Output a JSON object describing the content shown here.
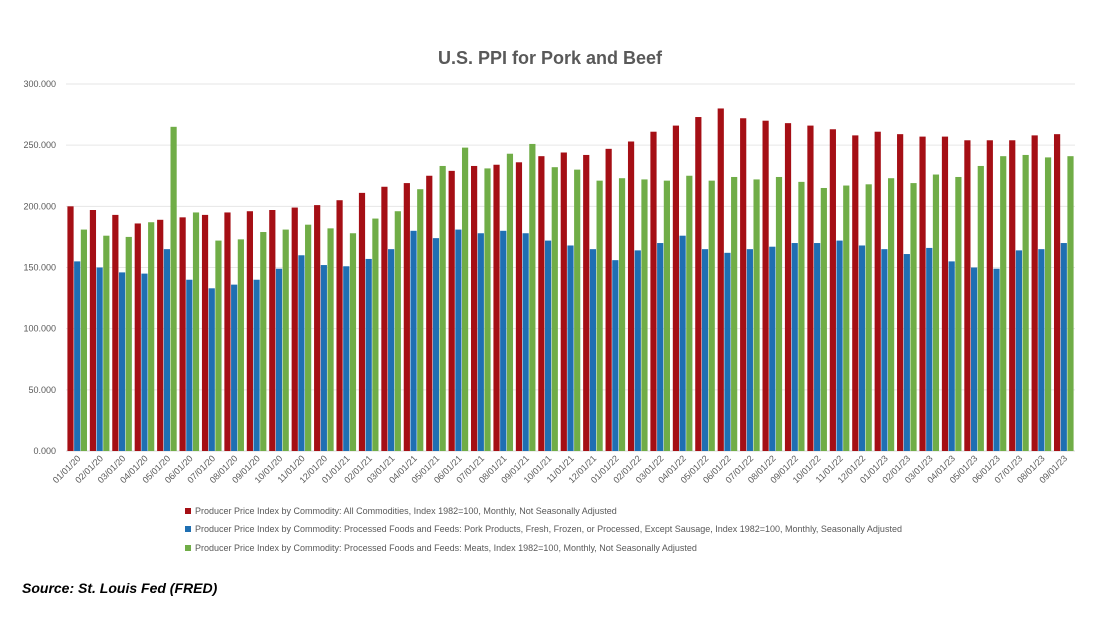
{
  "chart_data": {
    "type": "bar",
    "title": "U.S. PPI for Pork and Beef",
    "xlabel": "",
    "ylabel": "",
    "ylim": [
      0,
      300
    ],
    "yticks": [
      "0.000",
      "50.000",
      "100.000",
      "150.000",
      "200.000",
      "250.000",
      "300.000"
    ],
    "grid": true,
    "legend_position": "bottom",
    "categories": [
      "01/01/20",
      "02/01/20",
      "03/01/20",
      "04/01/20",
      "05/01/20",
      "06/01/20",
      "07/01/20",
      "08/01/20",
      "09/01/20",
      "10/01/20",
      "11/01/20",
      "12/01/20",
      "01/01/21",
      "02/01/21",
      "03/01/21",
      "04/01/21",
      "05/01/21",
      "06/01/21",
      "07/01/21",
      "08/01/21",
      "09/01/21",
      "10/01/21",
      "11/01/21",
      "12/01/21",
      "01/01/22",
      "02/01/22",
      "03/01/22",
      "04/01/22",
      "05/01/22",
      "06/01/22",
      "07/01/22",
      "08/01/22",
      "09/01/22",
      "10/01/22",
      "11/01/22",
      "12/01/22",
      "01/01/23",
      "02/01/23",
      "03/01/23",
      "04/01/23",
      "05/01/23",
      "06/01/23",
      "07/01/23",
      "08/01/23",
      "09/01/23"
    ],
    "series": [
      {
        "name": "Producer Price Index by Commodity: All Commodities, Index 1982=100, Monthly, Not Seasonally Adjusted",
        "color": "#A50F15",
        "values": [
          200,
          197,
          193,
          186,
          189,
          191,
          193,
          195,
          196,
          197,
          199,
          201,
          205,
          211,
          216,
          219,
          225,
          229,
          233,
          234,
          236,
          241,
          244,
          242,
          247,
          253,
          261,
          266,
          273,
          280,
          272,
          270,
          268,
          266,
          263,
          258,
          261,
          259,
          257,
          257,
          254,
          254,
          254,
          258,
          259
        ]
      },
      {
        "name": "Producer Price Index by Commodity: Processed Foods and Feeds: Pork Products, Fresh, Frozen, or Processed, Except Sausage, Index 1982=100, Monthly, Seasonally Adjusted",
        "color": "#1F6FB2",
        "values": [
          155,
          150,
          146,
          145,
          165,
          140,
          133,
          136,
          140,
          149,
          160,
          152,
          151,
          157,
          165,
          180,
          174,
          181,
          178,
          180,
          178,
          172,
          168,
          165,
          156,
          164,
          170,
          176,
          165,
          162,
          165,
          167,
          170,
          170,
          172,
          168,
          165,
          161,
          166,
          155,
          150,
          149,
          164,
          165,
          170
        ]
      },
      {
        "name": "Producer Price Index by Commodity: Processed Foods and Feeds: Meats, Index 1982=100, Monthly, Not Seasonally Adjusted",
        "color": "#70AD47",
        "values": [
          181,
          176,
          175,
          187,
          265,
          195,
          172,
          173,
          179,
          181,
          185,
          182,
          178,
          190,
          196,
          214,
          233,
          248,
          231,
          243,
          251,
          232,
          230,
          221,
          223,
          222,
          221,
          225,
          221,
          224,
          222,
          224,
          220,
          215,
          217,
          218,
          223,
          219,
          226,
          224,
          233,
          241,
          242,
          240,
          241
        ]
      }
    ]
  },
  "source": "Source: St. Louis Fed (FRED)"
}
